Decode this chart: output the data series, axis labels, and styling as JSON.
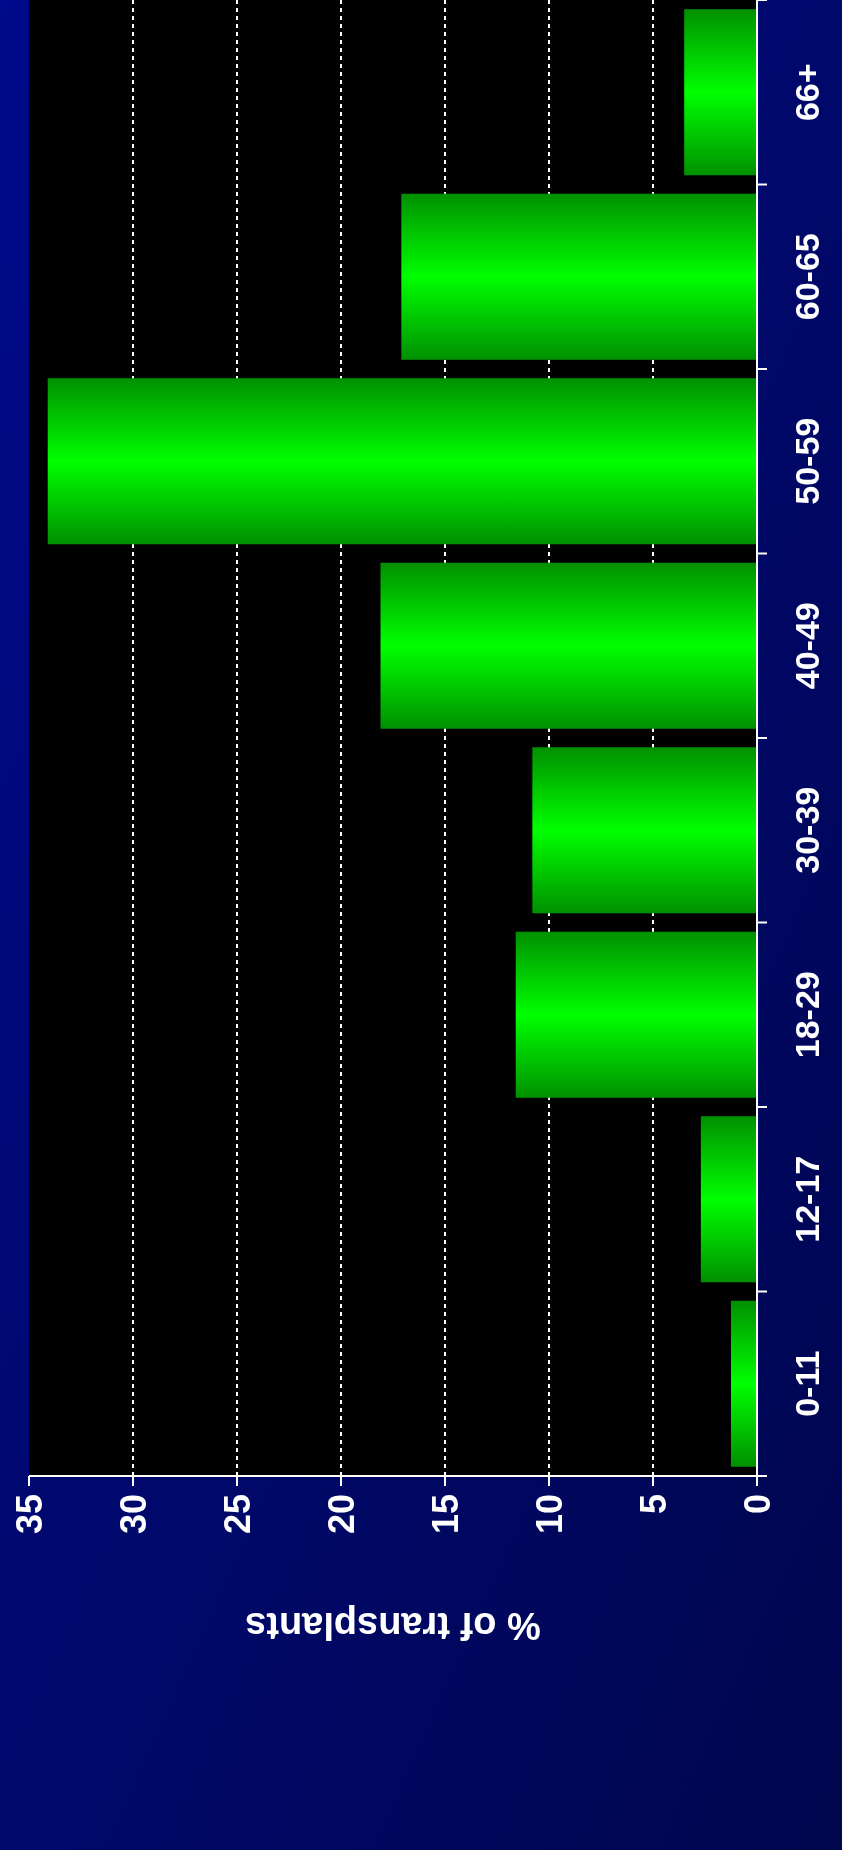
{
  "chart_data": {
    "type": "bar",
    "orientation": "horizontal",
    "xlabel": "% of transplants",
    "categories": [
      "66+",
      "60-65",
      "50-59",
      "40-49",
      "30-39",
      "18-29",
      "12-17",
      "0-11"
    ],
    "values": [
      3.5,
      17.1,
      34.1,
      18.1,
      10.8,
      11.6,
      2.7,
      1.25
    ],
    "color": "#00ff00",
    "xlim": [
      35,
      0
    ],
    "xticks": [
      0,
      5,
      10,
      15,
      20,
      25,
      30,
      35
    ],
    "grid": "x"
  }
}
